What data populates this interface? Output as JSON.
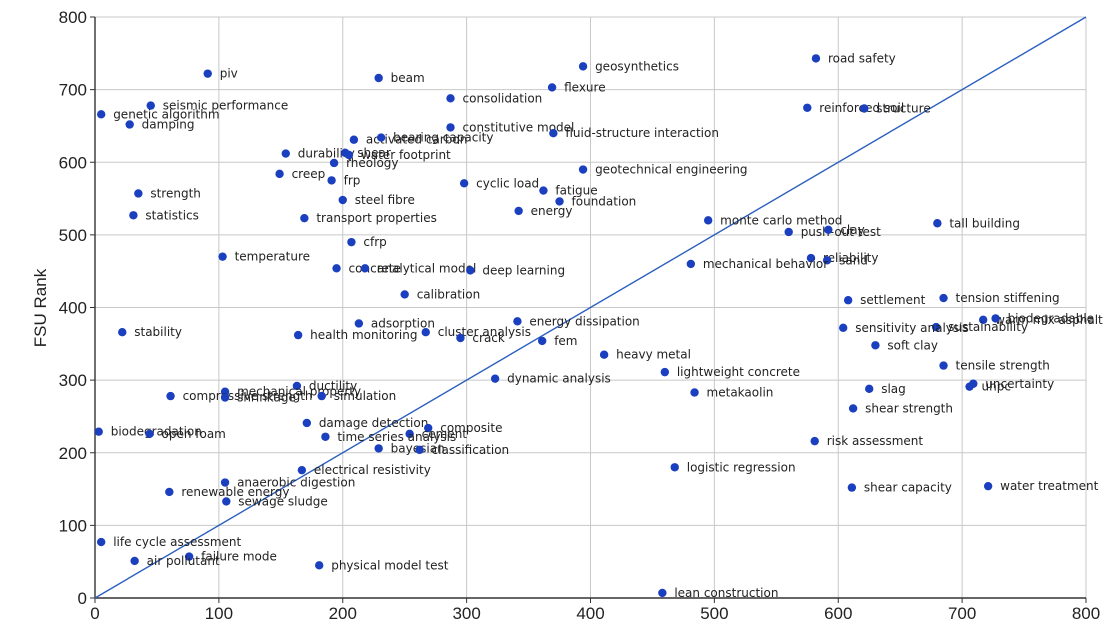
{
  "chart_data": {
    "type": "scatter",
    "title": "",
    "xlabel": "",
    "ylabel": "FSU Rank",
    "xlim": [
      0,
      800
    ],
    "ylim": [
      0,
      800
    ],
    "x_ticks": [
      0,
      100,
      200,
      300,
      400,
      500,
      600,
      700,
      800
    ],
    "y_ticks": [
      0,
      100,
      200,
      300,
      400,
      500,
      600,
      700,
      800
    ],
    "grid": true,
    "reference_line": {
      "from": [
        0,
        0
      ],
      "to": [
        800,
        800
      ]
    },
    "point_color": "#1a3fbf",
    "line_color": "#2b5fbf",
    "points": [
      {
        "label": "piv",
        "x": 91,
        "y": 722
      },
      {
        "label": "road safety",
        "x": 582,
        "y": 743
      },
      {
        "label": "beam",
        "x": 229,
        "y": 716
      },
      {
        "label": "geosynthetics",
        "x": 394,
        "y": 732
      },
      {
        "label": "consolidation",
        "x": 287,
        "y": 688
      },
      {
        "label": "flexure",
        "x": 369,
        "y": 703
      },
      {
        "label": "seismic performance",
        "x": 45,
        "y": 678
      },
      {
        "label": "genetic algorithm",
        "x": 5,
        "y": 666
      },
      {
        "label": "damping",
        "x": 28,
        "y": 652
      },
      {
        "label": "reinforced soil",
        "x": 575,
        "y": 675
      },
      {
        "label": "structure",
        "x": 621,
        "y": 674
      },
      {
        "label": "constitutive model",
        "x": 287,
        "y": 648
      },
      {
        "label": "fluid-structure interaction",
        "x": 370,
        "y": 640
      },
      {
        "label": "activated carbon",
        "x": 209,
        "y": 631
      },
      {
        "label": "bearing capacity",
        "x": 231,
        "y": 634
      },
      {
        "label": "durability",
        "x": 154,
        "y": 612
      },
      {
        "label": "shear",
        "x": 202,
        "y": 613
      },
      {
        "label": "water footprint",
        "x": 205,
        "y": 610
      },
      {
        "label": "rheology",
        "x": 193,
        "y": 599
      },
      {
        "label": "geotechnical engineering",
        "x": 394,
        "y": 590
      },
      {
        "label": "creep",
        "x": 149,
        "y": 584
      },
      {
        "label": "frp",
        "x": 191,
        "y": 575
      },
      {
        "label": "cyclic load",
        "x": 298,
        "y": 571
      },
      {
        "label": "fatigue",
        "x": 362,
        "y": 561
      },
      {
        "label": "strength",
        "x": 35,
        "y": 557
      },
      {
        "label": "steel fibre",
        "x": 200,
        "y": 548
      },
      {
        "label": "foundation",
        "x": 375,
        "y": 546
      },
      {
        "label": "energy",
        "x": 342,
        "y": 533
      },
      {
        "label": "statistics",
        "x": 31,
        "y": 527
      },
      {
        "label": "transport properties",
        "x": 169,
        "y": 523
      },
      {
        "label": "monte carlo method",
        "x": 495,
        "y": 520
      },
      {
        "label": "tall building",
        "x": 680,
        "y": 516
      },
      {
        "label": "push-out test",
        "x": 560,
        "y": 504
      },
      {
        "label": "clay",
        "x": 592,
        "y": 507
      },
      {
        "label": "cfrp",
        "x": 207,
        "y": 490
      },
      {
        "label": "temperature",
        "x": 103,
        "y": 470
      },
      {
        "label": "reliability",
        "x": 578,
        "y": 468
      },
      {
        "label": "sand",
        "x": 591,
        "y": 465
      },
      {
        "label": "mechanical behavior",
        "x": 481,
        "y": 460
      },
      {
        "label": "concrete",
        "x": 195,
        "y": 454
      },
      {
        "label": "analytical model",
        "x": 218,
        "y": 454
      },
      {
        "label": "deep learning",
        "x": 303,
        "y": 451
      },
      {
        "label": "calibration",
        "x": 250,
        "y": 418
      },
      {
        "label": "tension stiffening",
        "x": 685,
        "y": 413
      },
      {
        "label": "settlement",
        "x": 608,
        "y": 410
      },
      {
        "label": "warm mix asphalt",
        "x": 717,
        "y": 383
      },
      {
        "label": "biodegradable",
        "x": 727,
        "y": 385
      },
      {
        "label": "sustainability",
        "x": 679,
        "y": 373
      },
      {
        "label": "sensitivity analysis",
        "x": 604,
        "y": 372
      },
      {
        "label": "energy dissipation",
        "x": 341,
        "y": 381
      },
      {
        "label": "adsorption",
        "x": 213,
        "y": 378
      },
      {
        "label": "stability",
        "x": 22,
        "y": 366
      },
      {
        "label": "cluster analysis",
        "x": 267,
        "y": 366
      },
      {
        "label": "health monitoring",
        "x": 164,
        "y": 362
      },
      {
        "label": "crack",
        "x": 295,
        "y": 358
      },
      {
        "label": "fem",
        "x": 361,
        "y": 354
      },
      {
        "label": "soft clay",
        "x": 630,
        "y": 348
      },
      {
        "label": "heavy metal",
        "x": 411,
        "y": 335
      },
      {
        "label": "tensile strength",
        "x": 685,
        "y": 320
      },
      {
        "label": "lightweight concrete",
        "x": 460,
        "y": 311
      },
      {
        "label": "dynamic analysis",
        "x": 323,
        "y": 302
      },
      {
        "label": "ductility",
        "x": 163,
        "y": 292
      },
      {
        "label": "uncertainty",
        "x": 709,
        "y": 295
      },
      {
        "label": "uhpc",
        "x": 706,
        "y": 291
      },
      {
        "label": "slag",
        "x": 625,
        "y": 288
      },
      {
        "label": "mechanical property",
        "x": 105,
        "y": 284
      },
      {
        "label": "metakaolin",
        "x": 484,
        "y": 283
      },
      {
        "label": "compressive strength",
        "x": 61,
        "y": 278
      },
      {
        "label": "shrinkage",
        "x": 105,
        "y": 276
      },
      {
        "label": "simulation",
        "x": 183,
        "y": 278
      },
      {
        "label": "shear strength",
        "x": 612,
        "y": 261
      },
      {
        "label": "damage detection",
        "x": 171,
        "y": 241
      },
      {
        "label": "composite",
        "x": 269,
        "y": 234
      },
      {
        "label": "biodegradation",
        "x": 3,
        "y": 229
      },
      {
        "label": "open foam",
        "x": 44,
        "y": 226
      },
      {
        "label": "cement",
        "x": 254,
        "y": 226
      },
      {
        "label": "time series analysis",
        "x": 186,
        "y": 222
      },
      {
        "label": "risk assessment",
        "x": 581,
        "y": 216
      },
      {
        "label": "bayesian",
        "x": 229,
        "y": 206
      },
      {
        "label": "classification",
        "x": 262,
        "y": 204
      },
      {
        "label": "logistic regression",
        "x": 468,
        "y": 180
      },
      {
        "label": "electrical resistivity",
        "x": 167,
        "y": 176
      },
      {
        "label": "anaerobic digestion",
        "x": 105,
        "y": 159
      },
      {
        "label": "water treatment",
        "x": 721,
        "y": 154
      },
      {
        "label": "shear capacity",
        "x": 611,
        "y": 152
      },
      {
        "label": "renewable energy",
        "x": 60,
        "y": 146
      },
      {
        "label": "sewage sludge",
        "x": 106,
        "y": 133
      },
      {
        "label": "life cycle assessment",
        "x": 5,
        "y": 77
      },
      {
        "label": "failure mode",
        "x": 76,
        "y": 57
      },
      {
        "label": "air pollutant",
        "x": 32,
        "y": 51
      },
      {
        "label": "physical model test",
        "x": 181,
        "y": 45
      },
      {
        "label": "lean construction",
        "x": 458,
        "y": 7
      }
    ]
  }
}
